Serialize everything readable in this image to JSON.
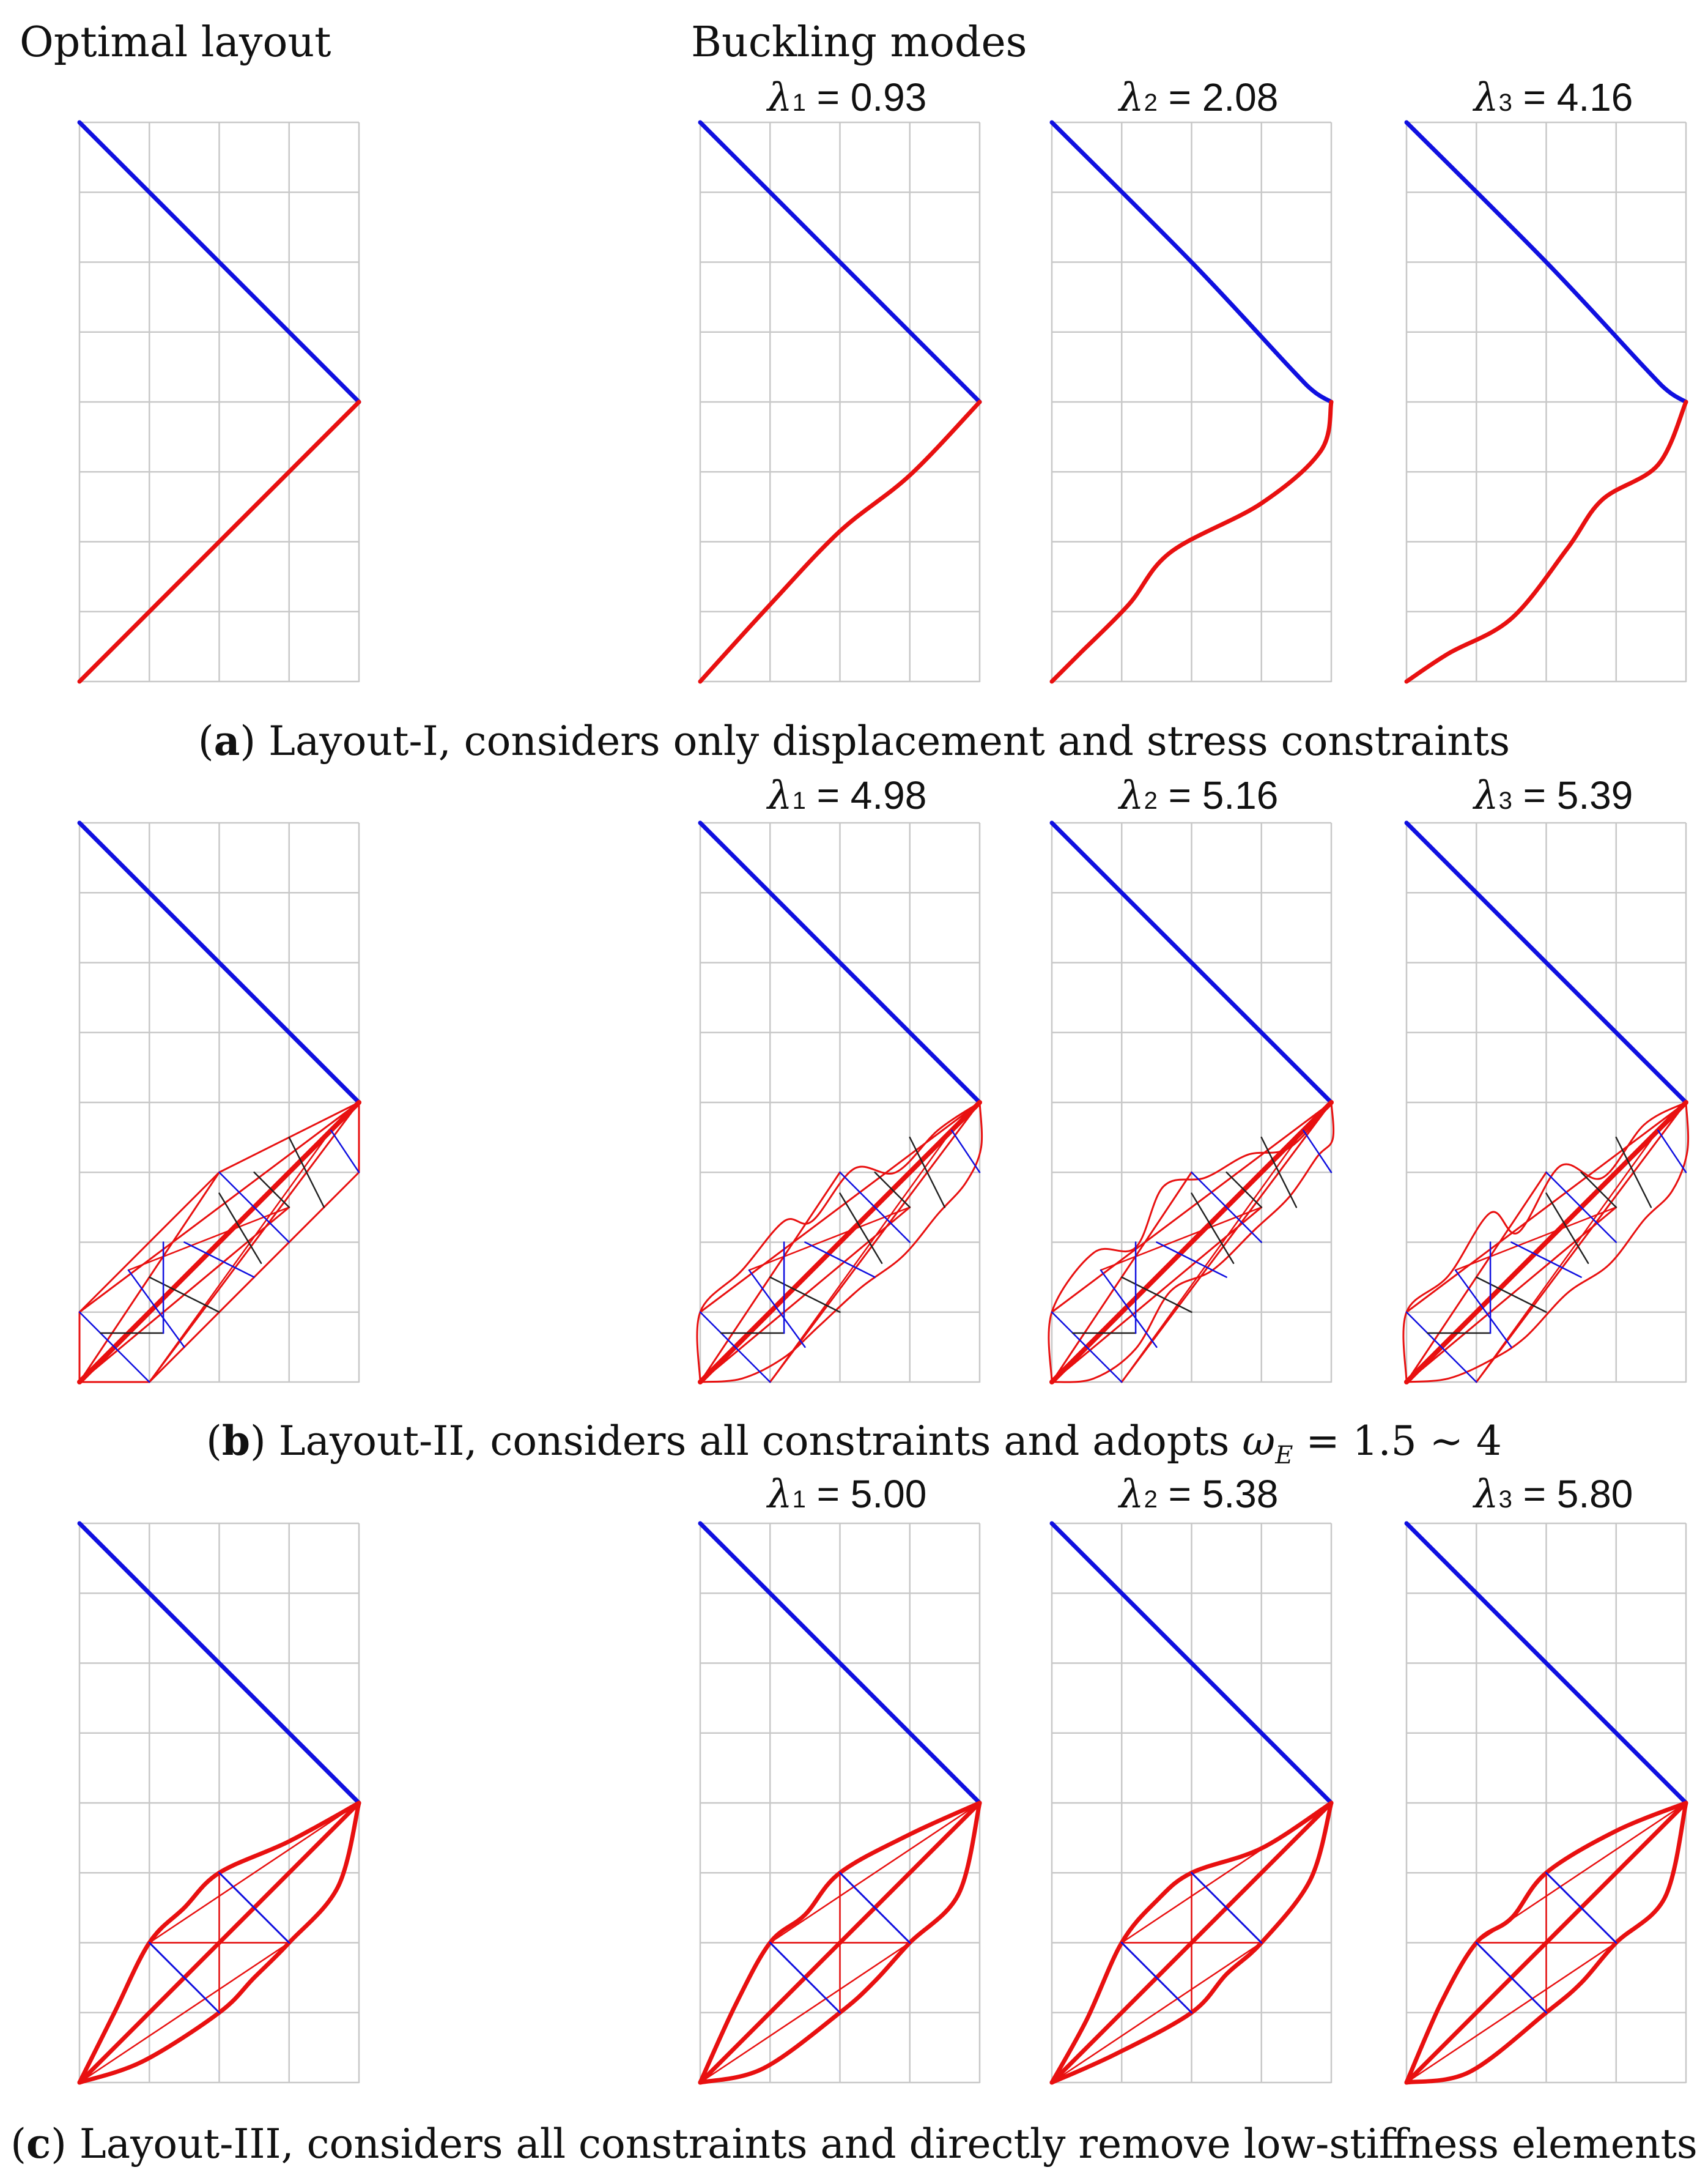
{
  "headers": {
    "optimal": "Optimal layout",
    "buckling": "Buckling modes"
  },
  "colors": {
    "tension": "#1010e0",
    "compression": "#e81010",
    "grid": "#c8c8c8",
    "brace": "#222222"
  },
  "rows": [
    {
      "caption_label": "a",
      "caption_text": "Layout-I, considers only displacement and stress constraints",
      "modes": [
        {
          "symbol": "λ",
          "index": "1",
          "value": "= 0.93"
        },
        {
          "symbol": "λ",
          "index": "2",
          "value": "= 2.08"
        },
        {
          "symbol": "λ",
          "index": "3",
          "value": "= 4.16"
        }
      ]
    },
    {
      "caption_label": "b",
      "caption_text": "Layout-II, considers all constraints and adopts",
      "caption_math": "ω",
      "caption_math_sub": "E",
      "caption_math_rest": "= 1.5 ∼ 4",
      "modes": [
        {
          "symbol": "λ",
          "index": "1",
          "value": "= 4.98"
        },
        {
          "symbol": "λ",
          "index": "2",
          "value": "= 5.16"
        },
        {
          "symbol": "λ",
          "index": "3",
          "value": "= 5.39"
        }
      ]
    },
    {
      "caption_label": "c",
      "caption_text": "Layout-III, considers all constraints and directly remove low-stiffness elements",
      "modes": [
        {
          "symbol": "λ",
          "index": "1",
          "value": "= 5.00"
        },
        {
          "symbol": "λ",
          "index": "2",
          "value": "= 5.38"
        },
        {
          "symbol": "λ",
          "index": "3",
          "value": "= 5.80"
        }
      ]
    }
  ]
}
